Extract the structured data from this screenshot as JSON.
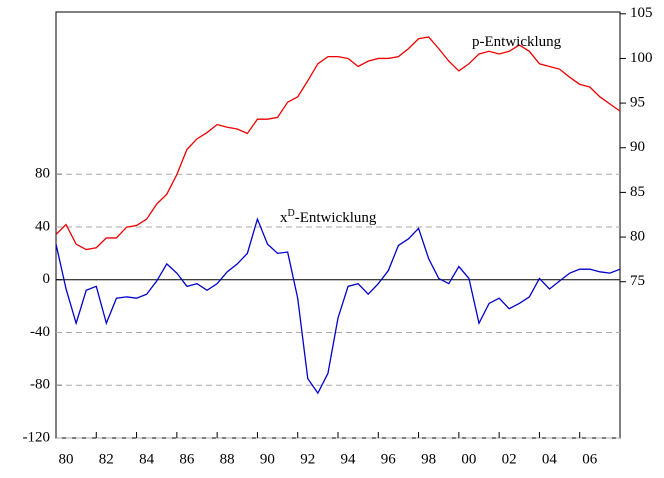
{
  "chart_data": {
    "type": "line",
    "x": [
      1980,
      1980.5,
      1981,
      1981.5,
      1982,
      1982.5,
      1983,
      1983.5,
      1984,
      1984.5,
      1985,
      1985.5,
      1986,
      1986.5,
      1987,
      1987.5,
      1988,
      1988.5,
      1989,
      1989.5,
      1990,
      1990.5,
      1991,
      1991.5,
      1992,
      1992.5,
      1993,
      1993.5,
      1994,
      1994.5,
      1995,
      1995.5,
      1996,
      1996.5,
      1997,
      1997.5,
      1998,
      1998.5,
      1999,
      1999.5,
      2000,
      2000.5,
      2001,
      2001.5,
      2002,
      2002.5,
      2003,
      2003.5,
      2004,
      2004.5,
      2005,
      2005.5,
      2006,
      2006.5,
      2007,
      2007.5,
      2008
    ],
    "series": [
      {
        "color": "#0000cc",
        "axis": "y",
        "values": [
          27,
          -7,
          -33,
          -8,
          -5,
          -33,
          -14,
          -13,
          -14,
          -11,
          -1,
          12,
          5,
          -5,
          -3,
          -8,
          -3,
          6,
          12,
          20,
          46,
          27,
          20,
          21,
          -14,
          -75,
          -86,
          -71,
          -29,
          -5,
          -3,
          -11,
          -3,
          7,
          26,
          31,
          39,
          16,
          1,
          -3,
          10,
          1,
          -33,
          -18,
          -14,
          -22,
          -18,
          -13,
          1,
          -7,
          -1,
          5,
          8,
          8,
          6,
          5,
          8
        ]
      },
      {
        "color": "#ee0000",
        "axis": "y2",
        "values": [
          80.3,
          81.4,
          79.2,
          78.6,
          78.8,
          79.9,
          79.9,
          81.1,
          81.3,
          82.0,
          83.7,
          84.8,
          87.0,
          89.8,
          91.0,
          91.7,
          92.6,
          92.3,
          92.1,
          91.6,
          93.2,
          93.2,
          93.4,
          95.1,
          95.7,
          97.5,
          99.4,
          100.2,
          100.2,
          100.0,
          99.1,
          99.7,
          100.0,
          100.0,
          100.2,
          101.1,
          102.2,
          102.4,
          101.1,
          99.7,
          98.6,
          99.4,
          100.5,
          100.8,
          100.5,
          100.8,
          101.5,
          100.8,
          99.4,
          99.1,
          98.8,
          97.9,
          97.1,
          96.8,
          95.7,
          94.9,
          94.1
        ]
      }
    ],
    "annotations": [
      {
        "parts": [
          "p-Entwicklung"
        ]
      },
      {
        "parts": [
          "x",
          "D",
          "-Entwicklung"
        ]
      }
    ],
    "xlim": [
      1980,
      2008
    ],
    "xticks": [
      {
        "value": 1980,
        "label": "80"
      },
      {
        "value": 1982,
        "label": "82"
      },
      {
        "value": 1984,
        "label": "84"
      },
      {
        "value": 1986,
        "label": "86"
      },
      {
        "value": 1988,
        "label": "88"
      },
      {
        "value": 1990,
        "label": "90"
      },
      {
        "value": 1992,
        "label": "92"
      },
      {
        "value": 1994,
        "label": "94"
      },
      {
        "value": 1996,
        "label": "96"
      },
      {
        "value": 1998,
        "label": "98"
      },
      {
        "value": 2000,
        "label": "00"
      },
      {
        "value": 2002,
        "label": "02"
      },
      {
        "value": 2004,
        "label": "04"
      },
      {
        "value": 2006,
        "label": "06"
      }
    ],
    "ylim": [
      -120,
      203
    ],
    "yticks": [
      -120,
      -80,
      -40,
      0,
      40,
      80
    ],
    "y2lim": [
      57.5,
      105.2
    ],
    "y2ticks": [
      75,
      80,
      85,
      90,
      95,
      100,
      105
    ],
    "grid": true,
    "zero_line": true
  }
}
